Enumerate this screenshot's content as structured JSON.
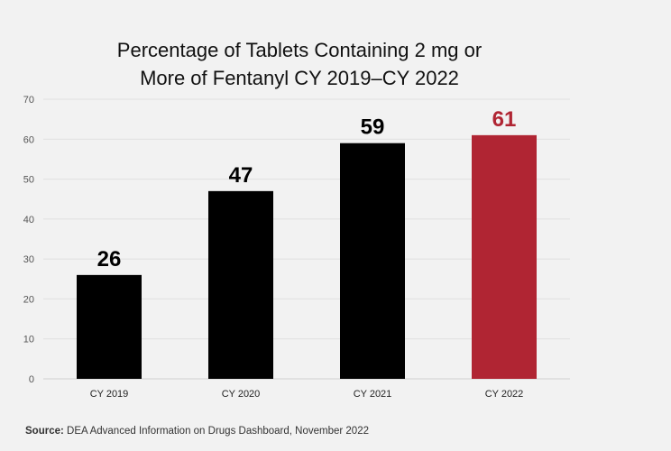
{
  "chart_data": {
    "type": "bar",
    "title_lines": [
      "Percentage of Tablets Containing 2 mg or",
      "More of Fentanyl CY 2019–CY 2022"
    ],
    "categories": [
      "CY 2019",
      "CY 2020",
      "CY 2021",
      "CY 2022"
    ],
    "values": [
      26,
      47,
      59,
      61
    ],
    "data_labels": [
      "26",
      "47",
      "59",
      "61"
    ],
    "bar_colors": [
      "#000000",
      "#000000",
      "#000000",
      "#b02533"
    ],
    "label_colors": [
      "#000000",
      "#000000",
      "#000000",
      "#b02533"
    ],
    "ylim": [
      0,
      70
    ],
    "yticks": [
      0,
      10,
      20,
      30,
      40,
      50,
      60,
      70
    ],
    "grid": true,
    "xlabel": "",
    "ylabel": ""
  },
  "source": {
    "label": "Source:",
    "text": " DEA Advanced Information on Drugs Dashboard, November 2022"
  }
}
